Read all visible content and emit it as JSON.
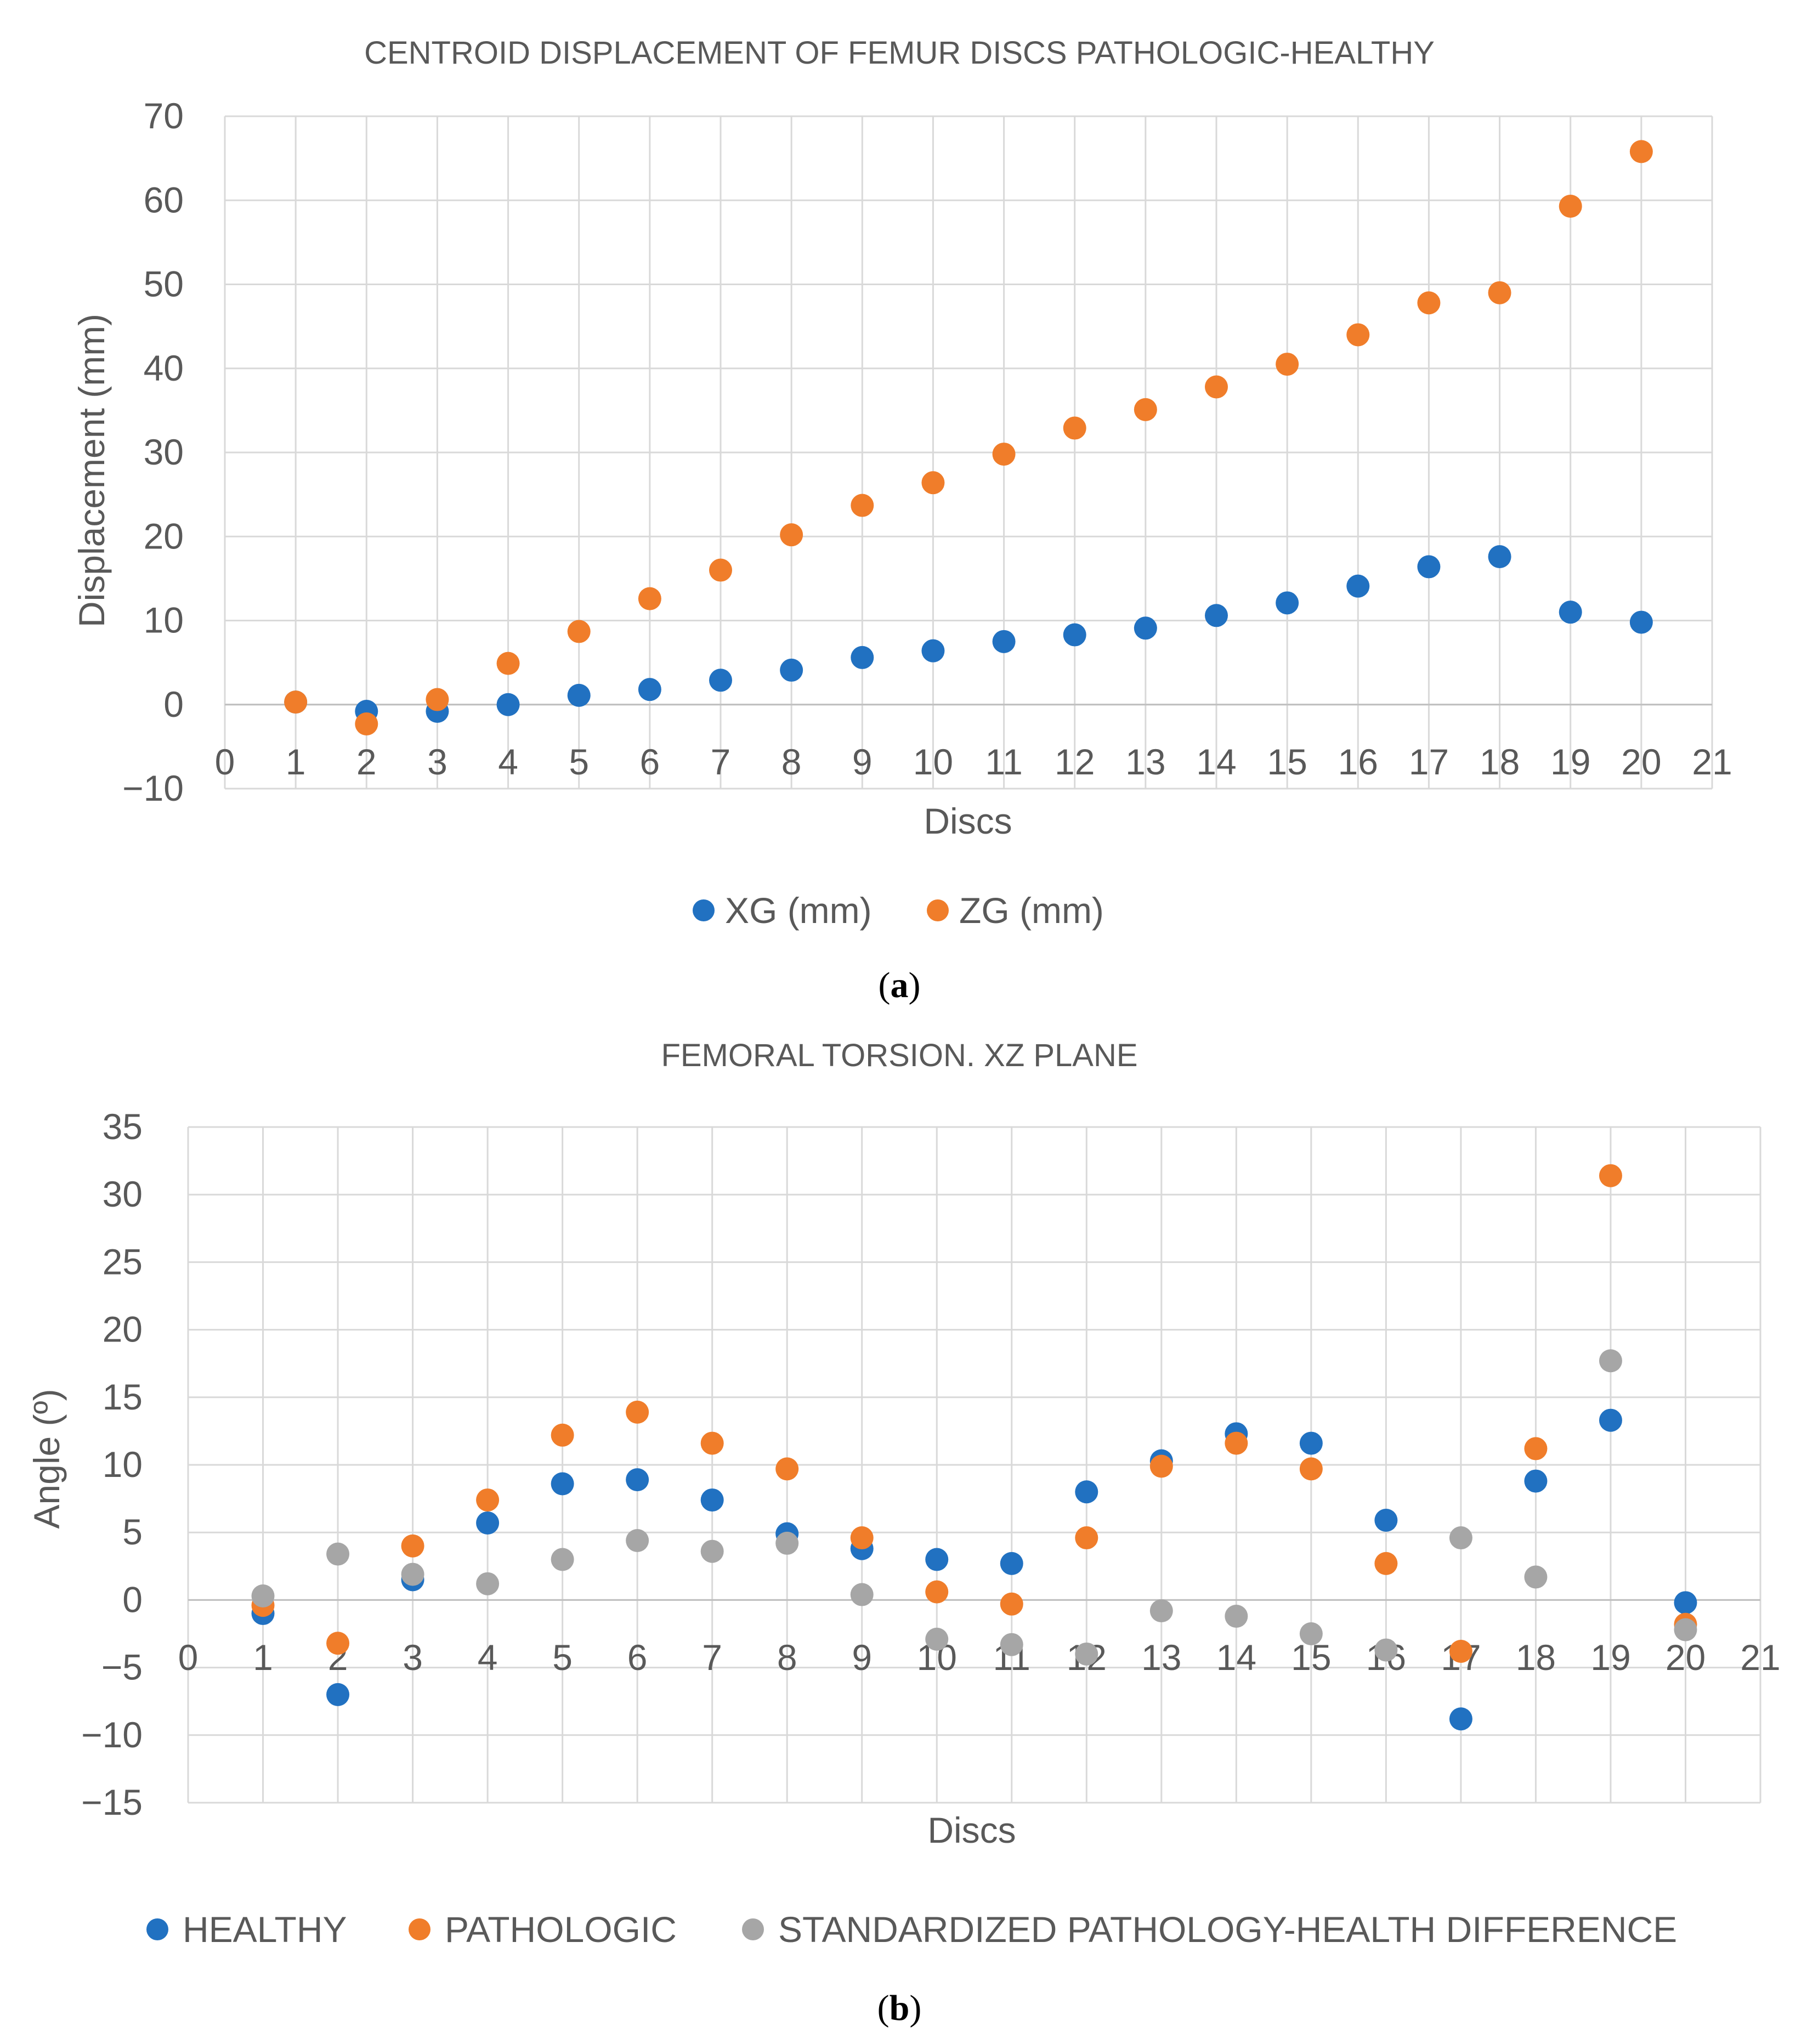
{
  "colors": {
    "blue": "#2171c1",
    "orange": "#f07d2a",
    "gray": "#a6a6a6",
    "grid": "#d9d9d9",
    "text": "#595959"
  },
  "captions": {
    "a": "a",
    "b": "b"
  },
  "chart_data": [
    {
      "type": "scatter",
      "title": "CENTROID DISPLACEMENT OF FEMUR DISCS PATHOLOGIC-HEALTHY",
      "xlabel": "Discs",
      "ylabel": "Displacement (mm)",
      "xlim": [
        0,
        21
      ],
      "ylim": [
        -10,
        70
      ],
      "xticks": [
        "0",
        "1",
        "2",
        "3",
        "4",
        "5",
        "6",
        "7",
        "8",
        "9",
        "10",
        "11",
        "12",
        "13",
        "14",
        "15",
        "16",
        "17",
        "18",
        "19",
        "20",
        "21"
      ],
      "yticks": [
        "−10",
        "0",
        "10",
        "20",
        "30",
        "40",
        "50",
        "60",
        "70"
      ],
      "grid": true,
      "legend_position": "bottom",
      "series": [
        {
          "name": "XG (mm)",
          "color": "#2171c1",
          "x": [
            1,
            2,
            3,
            4,
            5,
            6,
            7,
            8,
            9,
            10,
            11,
            12,
            13,
            14,
            15,
            16,
            17,
            18,
            19,
            20
          ],
          "y": [
            0.3,
            -0.8,
            -0.8,
            0.0,
            1.1,
            1.8,
            2.9,
            4.1,
            5.6,
            6.4,
            7.5,
            8.3,
            9.1,
            10.6,
            12.1,
            14.1,
            16.4,
            17.6,
            11.0,
            9.8
          ]
        },
        {
          "name": "ZG (mm)",
          "color": "#f07d2a",
          "x": [
            1,
            2,
            3,
            4,
            5,
            6,
            7,
            8,
            9,
            10,
            11,
            12,
            13,
            14,
            15,
            16,
            17,
            18,
            19,
            20
          ],
          "y": [
            0.3,
            -2.3,
            0.6,
            4.9,
            8.7,
            12.6,
            16.0,
            20.2,
            23.7,
            26.4,
            29.8,
            32.9,
            35.1,
            37.8,
            40.5,
            44.0,
            47.8,
            49.0,
            59.3,
            65.8
          ]
        }
      ]
    },
    {
      "type": "scatter",
      "title": "FEMORAL TORSION. XZ PLANE",
      "xlabel": "Discs",
      "ylabel": "Angle (º)",
      "xlim": [
        0,
        21
      ],
      "ylim": [
        -15,
        35
      ],
      "xticks": [
        "0",
        "1",
        "2",
        "3",
        "4",
        "5",
        "6",
        "7",
        "8",
        "9",
        "10",
        "11",
        "12",
        "13",
        "14",
        "15",
        "16",
        "17",
        "18",
        "19",
        "20",
        "21"
      ],
      "yticks": [
        "−15",
        "−10",
        "−5",
        "0",
        "5",
        "10",
        "15",
        "20",
        "25",
        "30",
        "35"
      ],
      "grid": true,
      "legend_position": "bottom",
      "series": [
        {
          "name": "HEALTHY",
          "color": "#2171c1",
          "x": [
            1,
            2,
            3,
            4,
            5,
            6,
            7,
            8,
            9,
            10,
            11,
            12,
            13,
            14,
            15,
            16,
            17,
            18,
            19,
            20
          ],
          "y": [
            -1.0,
            -7.0,
            1.5,
            5.7,
            8.6,
            8.9,
            7.4,
            4.9,
            3.8,
            3.0,
            2.7,
            8.0,
            10.3,
            12.3,
            11.6,
            5.9,
            -8.8,
            8.8,
            13.3,
            -0.2
          ]
        },
        {
          "name": "PATHOLOGIC",
          "color": "#f07d2a",
          "x": [
            1,
            2,
            3,
            4,
            5,
            6,
            7,
            8,
            9,
            10,
            11,
            12,
            13,
            14,
            15,
            16,
            17,
            18,
            19,
            20
          ],
          "y": [
            -0.4,
            -3.2,
            4.0,
            7.4,
            12.2,
            13.9,
            11.6,
            9.7,
            4.6,
            0.6,
            -0.3,
            4.6,
            9.9,
            11.6,
            9.7,
            2.7,
            -3.8,
            11.2,
            31.4,
            -1.8
          ]
        },
        {
          "name": "STANDARDIZED PATHOLOGY-HEALTH DIFFERENCE",
          "color": "#a6a6a6",
          "x": [
            1,
            2,
            3,
            4,
            5,
            6,
            7,
            8,
            9,
            10,
            11,
            12,
            13,
            14,
            15,
            16,
            17,
            18,
            19,
            20
          ],
          "y": [
            0.3,
            3.4,
            1.9,
            1.2,
            3.0,
            4.4,
            3.6,
            4.2,
            0.4,
            -2.9,
            -3.3,
            -4.0,
            -0.8,
            -1.2,
            -2.5,
            -3.7,
            4.6,
            1.7,
            17.7,
            -2.2
          ]
        }
      ]
    }
  ]
}
